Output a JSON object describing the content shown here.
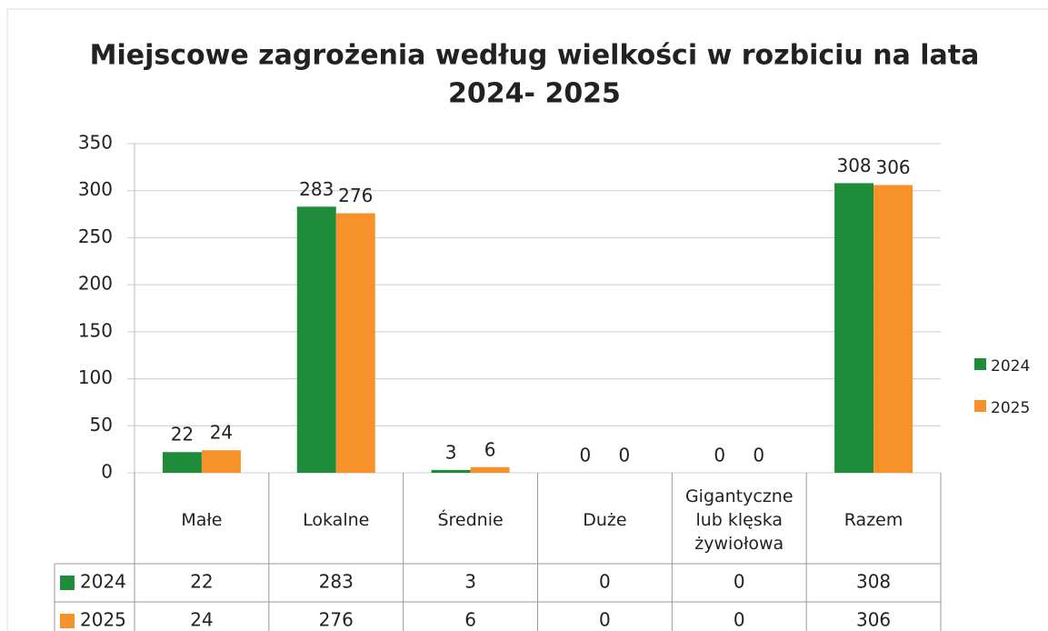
{
  "chart_data": {
    "type": "bar",
    "title": [
      "Miejscowe zagrożenia według wielkości w rozbiciu na lata",
      "2024- 2025"
    ],
    "categories": [
      "Małe",
      "Lokalne",
      "Średnie",
      "Duże",
      "Gigantyczne lub klęska żywiołowa",
      "Razem"
    ],
    "series": [
      {
        "name": "2024",
        "color": "#1e8c3a",
        "values": [
          22,
          283,
          3,
          0,
          0,
          308
        ]
      },
      {
        "name": "2025",
        "color": "#f7922a",
        "values": [
          24,
          276,
          6,
          0,
          0,
          306
        ]
      }
    ],
    "ylim": [
      0,
      350
    ],
    "yticks": [
      0,
      50,
      100,
      150,
      200,
      250,
      300,
      350
    ],
    "grid": true,
    "legend": "right",
    "data_table": true
  }
}
